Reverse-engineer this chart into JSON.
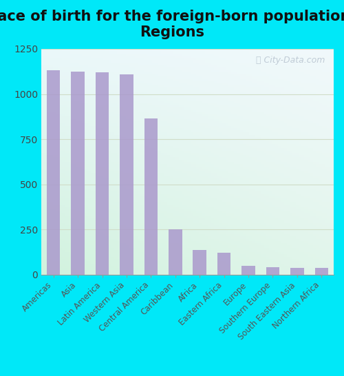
{
  "title": "Place of birth for the foreign-born population -\nRegions",
  "categories": [
    "Americas",
    "Asia",
    "Latin America",
    "Western Asia",
    "Central America",
    "Caribbean",
    "Africa",
    "Eastern Africa",
    "Europe",
    "Southern Europe",
    "South Eastern Asia",
    "Northern Africa"
  ],
  "values": [
    1130,
    1125,
    1120,
    1110,
    865,
    250,
    135,
    120,
    48,
    42,
    38,
    35
  ],
  "bar_color": "#aa99cc",
  "bg_outer": "#00e8f8",
  "ylim": [
    0,
    1250
  ],
  "yticks": [
    0,
    250,
    500,
    750,
    1000,
    1250
  ],
  "title_fontsize": 15,
  "tick_label_fontsize": 8.5,
  "ytick_fontsize": 10,
  "watermark": "City-Data.com",
  "grid_color": "#d0ddc8",
  "bar_width": 0.55
}
